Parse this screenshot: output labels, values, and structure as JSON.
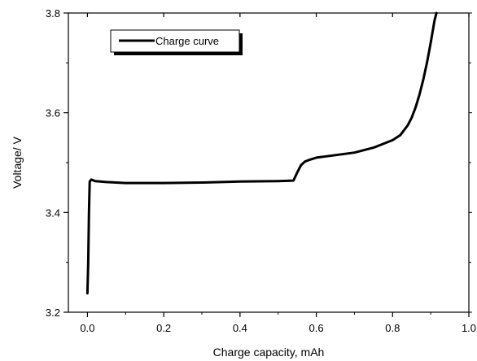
{
  "chart_data": {
    "type": "line",
    "title": "",
    "xlabel": "Charge capacity, mAh",
    "ylabel": "Voltage/ V",
    "xlim": [
      -0.05,
      1.0
    ],
    "ylim": [
      3.2,
      3.8
    ],
    "xticks": [
      0.0,
      0.2,
      0.4,
      0.6,
      0.8,
      1.0
    ],
    "xtick_labels": [
      "0.0",
      "0.2",
      "0.4",
      "0.6",
      "0.8",
      "1.0"
    ],
    "yticks": [
      3.2,
      3.4,
      3.6,
      3.8
    ],
    "ytick_labels": [
      "3.2",
      "3.4",
      "3.6",
      "3.8"
    ],
    "grid": false,
    "legend": "top-left",
    "series": [
      {
        "name": "Charge curve",
        "color": "#000000",
        "x": [
          0.0,
          0.002,
          0.004,
          0.006,
          0.01,
          0.02,
          0.05,
          0.1,
          0.2,
          0.3,
          0.4,
          0.5,
          0.54,
          0.55,
          0.56,
          0.57,
          0.58,
          0.6,
          0.65,
          0.7,
          0.75,
          0.8,
          0.82,
          0.84,
          0.85,
          0.86,
          0.87,
          0.88,
          0.89,
          0.9,
          0.91,
          0.915
        ],
        "y": [
          3.238,
          3.3,
          3.4,
          3.462,
          3.466,
          3.463,
          3.461,
          3.459,
          3.459,
          3.46,
          3.462,
          3.463,
          3.464,
          3.48,
          3.495,
          3.502,
          3.505,
          3.51,
          3.515,
          3.52,
          3.53,
          3.545,
          3.555,
          3.575,
          3.59,
          3.61,
          3.635,
          3.665,
          3.7,
          3.74,
          3.785,
          3.8
        ]
      }
    ]
  }
}
